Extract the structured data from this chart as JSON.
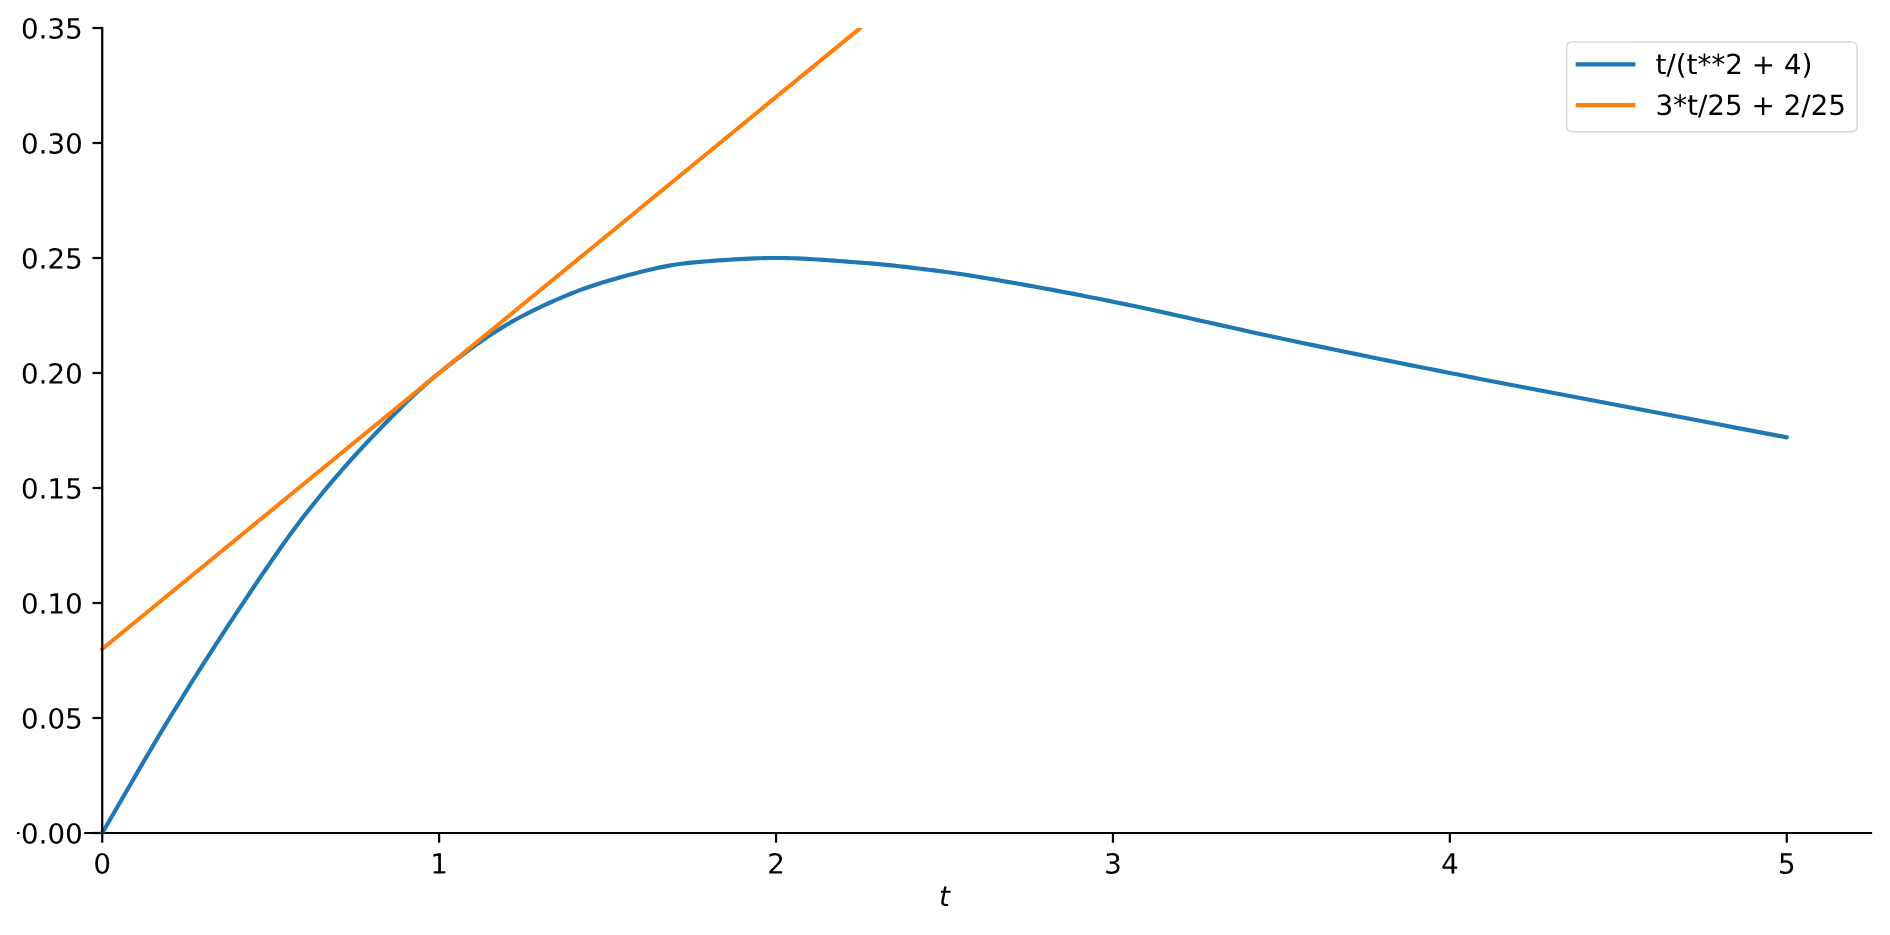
{
  "chart_data": {
    "type": "line",
    "xlabel": "t",
    "series": [
      {
        "name": "t/(t**2 + 4)",
        "color": "#1f77b4",
        "x": [
          0,
          0.2,
          0.4,
          0.6,
          0.8,
          1.0,
          1.25,
          1.5,
          1.75,
          2.0,
          2.25,
          2.5,
          2.75,
          3.0,
          3.5,
          4.0,
          4.5,
          5.0
        ],
        "values": [
          0,
          0.05,
          0.096,
          0.138,
          0.172,
          0.2,
          0.225,
          0.24,
          0.248,
          0.25,
          0.248,
          0.244,
          0.238,
          0.231,
          0.215,
          0.2,
          0.186,
          0.172
        ]
      },
      {
        "name": "3*t/25 + 2/25",
        "color": "#ff7f0e",
        "x": [
          0,
          1,
          2,
          2.25
        ],
        "values": [
          0.08,
          0.2,
          0.32,
          0.35
        ]
      }
    ],
    "xlim": [
      -0.25,
      5.25
    ],
    "ylim": [
      0,
      0.35
    ],
    "xticks": [
      0,
      1,
      2,
      3,
      4,
      5
    ],
    "yticks": [
      {
        "value": 0,
        "label": "0.00"
      },
      {
        "value": 0.05,
        "label": "0.05"
      },
      {
        "value": 0.1,
        "label": "0.10"
      },
      {
        "value": 0.15,
        "label": "0.15"
      },
      {
        "value": 0.2,
        "label": "0.20"
      },
      {
        "value": 0.25,
        "label": "0.25"
      },
      {
        "value": 0.3,
        "label": "0.30"
      },
      {
        "value": 0.35,
        "label": "0.35"
      }
    ],
    "legend": "top right",
    "line_style": "solid"
  }
}
